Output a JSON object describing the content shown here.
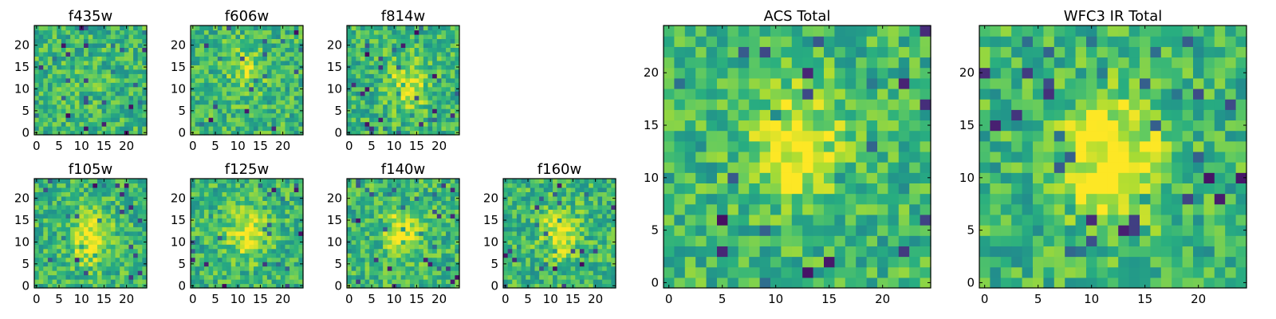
{
  "chart_data": [
    {
      "type": "heatmap",
      "title": "f435w",
      "xticks": [
        "0",
        "5",
        "10",
        "15",
        "20"
      ],
      "yticks": [
        "0",
        "5",
        "10",
        "15",
        "20"
      ],
      "grid": false,
      "xlim": [
        -0.5,
        24.5
      ],
      "ylim": [
        -0.5,
        24.5
      ],
      "image_size": [
        25,
        25
      ],
      "colormap": "viridis",
      "blob": {
        "cx": 12,
        "cy": 11,
        "strength": 0.05
      }
    },
    {
      "type": "heatmap",
      "title": "f606w",
      "xticks": [
        "0",
        "5",
        "10",
        "15",
        "20"
      ],
      "yticks": [
        "0",
        "5",
        "10",
        "15",
        "20"
      ],
      "grid": false,
      "xlim": [
        -0.5,
        24.5
      ],
      "ylim": [
        -0.5,
        24.5
      ],
      "image_size": [
        25,
        25
      ],
      "colormap": "viridis",
      "blob": {
        "cx": 12,
        "cy": 14,
        "strength": 0.18
      }
    },
    {
      "type": "heatmap",
      "title": "f814w",
      "xticks": [
        "0",
        "5",
        "10",
        "15",
        "20"
      ],
      "yticks": [
        "0",
        "5",
        "10",
        "15",
        "20"
      ],
      "grid": false,
      "xlim": [
        -0.5,
        24.5
      ],
      "ylim": [
        -0.5,
        24.5
      ],
      "image_size": [
        25,
        25
      ],
      "colormap": "viridis",
      "blob": {
        "cx": 13,
        "cy": 11,
        "strength": 0.3
      }
    },
    {
      "type": "heatmap",
      "title": "f105w",
      "xticks": [
        "0",
        "5",
        "10",
        "15",
        "20"
      ],
      "yticks": [
        "0",
        "5",
        "10",
        "15",
        "20"
      ],
      "grid": false,
      "xlim": [
        -0.5,
        24.5
      ],
      "ylim": [
        -0.5,
        24.5
      ],
      "image_size": [
        25,
        25
      ],
      "colormap": "viridis",
      "blob": {
        "cx": 12,
        "cy": 11,
        "strength": 0.35
      }
    },
    {
      "type": "heatmap",
      "title": "f125w",
      "xticks": [
        "0",
        "5",
        "10",
        "15",
        "20"
      ],
      "yticks": [
        "0",
        "5",
        "10",
        "15",
        "20"
      ],
      "grid": false,
      "xlim": [
        -0.5,
        24.5
      ],
      "ylim": [
        -0.5,
        24.5
      ],
      "image_size": [
        25,
        25
      ],
      "colormap": "viridis",
      "blob": {
        "cx": 12,
        "cy": 12,
        "strength": 0.3
      }
    },
    {
      "type": "heatmap",
      "title": "f140w",
      "xticks": [
        "0",
        "5",
        "10",
        "15",
        "20"
      ],
      "yticks": [
        "0",
        "5",
        "10",
        "15",
        "20"
      ],
      "grid": false,
      "xlim": [
        -0.5,
        24.5
      ],
      "ylim": [
        -0.5,
        24.5
      ],
      "image_size": [
        25,
        25
      ],
      "colormap": "viridis",
      "blob": {
        "cx": 12,
        "cy": 12,
        "strength": 0.3
      }
    },
    {
      "type": "heatmap",
      "title": "f160w",
      "xticks": [
        "0",
        "5",
        "10",
        "15",
        "20"
      ],
      "yticks": [
        "0",
        "5",
        "10",
        "15",
        "20"
      ],
      "grid": false,
      "xlim": [
        -0.5,
        24.5
      ],
      "ylim": [
        -0.5,
        24.5
      ],
      "image_size": [
        25,
        25
      ],
      "colormap": "viridis",
      "blob": {
        "cx": 12,
        "cy": 12,
        "strength": 0.3
      }
    },
    {
      "type": "heatmap",
      "title": "ACS Total",
      "xticks": [
        "0",
        "5",
        "10",
        "15",
        "20"
      ],
      "yticks": [
        "0",
        "5",
        "10",
        "15",
        "20"
      ],
      "grid": false,
      "xlim": [
        -0.5,
        24.5
      ],
      "ylim": [
        -0.5,
        24.5
      ],
      "image_size": [
        25,
        25
      ],
      "colormap": "viridis",
      "blob": {
        "cx": 12,
        "cy": 13,
        "strength": 0.35
      }
    },
    {
      "type": "heatmap",
      "title": "WFC3 IR Total",
      "xticks": [
        "0",
        "5",
        "10",
        "15",
        "20"
      ],
      "yticks": [
        "0",
        "5",
        "10",
        "15",
        "20"
      ],
      "grid": false,
      "xlim": [
        -0.5,
        24.5
      ],
      "ylim": [
        -0.5,
        24.5
      ],
      "image_size": [
        25,
        25
      ],
      "colormap": "viridis",
      "blob": {
        "cx": 12,
        "cy": 12,
        "strength": 0.45
      }
    }
  ]
}
